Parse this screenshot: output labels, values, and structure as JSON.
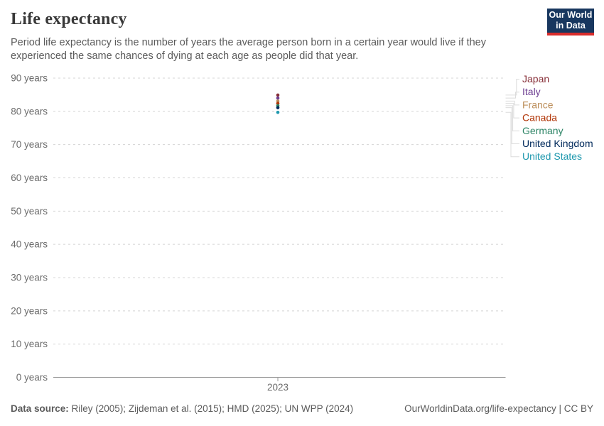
{
  "header": {
    "title": "Life expectancy",
    "subtitle": "Period life expectancy is the number of years the average person born in a certain year would live if they experienced the same chances of dying at each age as people did that year.",
    "logo": {
      "line1": "Our World",
      "line2": "in Data",
      "bg_color": "#18375f",
      "stripe_color": "#d82c2b"
    }
  },
  "chart_data": {
    "type": "scatter",
    "title": "Life expectancy",
    "x": [
      2023
    ],
    "x_tick_labels": [
      "2023"
    ],
    "y_ticks": [
      0,
      10,
      20,
      30,
      40,
      50,
      60,
      70,
      80,
      90
    ],
    "y_tick_suffix": " years",
    "ylim": [
      0,
      90
    ],
    "grid": "horizontal-dashed",
    "legend_position": "right-of-plot-with-connectors",
    "series": [
      {
        "name": "Japan",
        "color": "#883039",
        "values": [
          84.9
        ]
      },
      {
        "name": "Italy",
        "color": "#6d3e91",
        "values": [
          84.0
        ]
      },
      {
        "name": "France",
        "color": "#bc8e5a",
        "values": [
          83.1
        ]
      },
      {
        "name": "Canada",
        "color": "#b13507",
        "values": [
          82.4
        ]
      },
      {
        "name": "Germany",
        "color": "#2c8465",
        "values": [
          81.7
        ]
      },
      {
        "name": "United Kingdom",
        "color": "#00295b",
        "values": [
          81.1
        ]
      },
      {
        "name": "United States",
        "color": "#1e98ae",
        "values": [
          79.7
        ]
      }
    ],
    "axis_color": "#9a9a9a",
    "gridline_color": "#d4d4d4",
    "tick_label_color": "#6b6b6b",
    "connector_color": "#dcdcdc"
  },
  "footer": {
    "datasource_label": "Data source:",
    "datasource_text": " Riley (2005); Zijdeman et al. (2015); HMD (2025); UN WPP (2024)",
    "attribution": "OurWorldinData.org/life-expectancy | CC BY"
  }
}
